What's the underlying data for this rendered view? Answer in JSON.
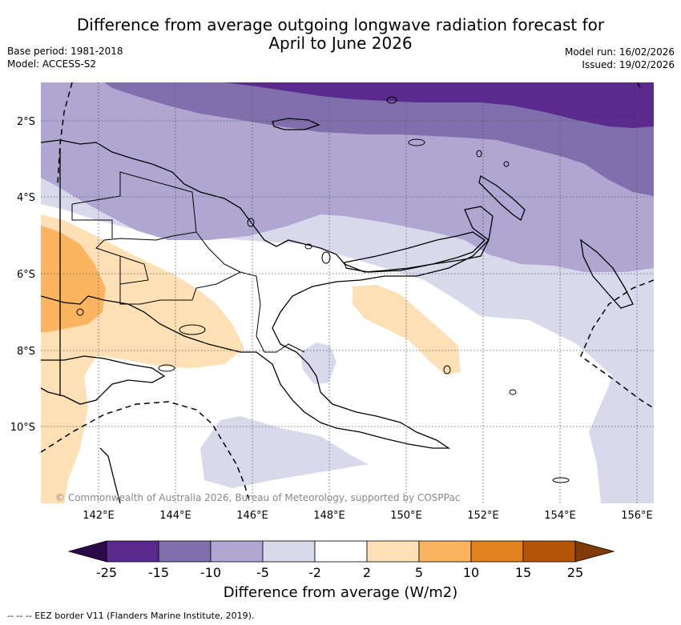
{
  "title": {
    "line1": "Difference from average outgoing longwave radiation forecast for",
    "line2": "April to June 2026"
  },
  "meta_left": {
    "base_period": "Base period: 1981-2018",
    "model": "Model: ACCESS-S2"
  },
  "meta_right": {
    "model_run": "Model run: 16/02/2026",
    "issued": "Issued: 19/02/2026"
  },
  "map": {
    "lat_labels": [
      "2°S",
      "4°S",
      "6°S",
      "8°S",
      "10°S"
    ],
    "lon_labels": [
      "142°E",
      "144°E",
      "146°E",
      "148°E",
      "150°E",
      "152°E",
      "154°E",
      "156°E"
    ],
    "credit": "© Commonwealth of Australia 2026, Bureau of Meteorology, supported by COSPPac",
    "region": "Papua New Guinea"
  },
  "colorbar": {
    "ticks": [
      "-25",
      "-15",
      "-10",
      "-5",
      "-2",
      "2",
      "5",
      "10",
      "15",
      "25"
    ],
    "colors": [
      "#5b2a8e",
      "#7f6fac",
      "#afa7d2",
      "#d9d9ec",
      "#ffffff",
      "#fde0b5",
      "#fbb560",
      "#e2821e",
      "#b35406"
    ],
    "under_color": "#2d0a4a",
    "over_color": "#7f3b08",
    "label": "Difference from average (W/m2)"
  },
  "footnote": "--  --  -- EEZ border V11 (Flanders Marine Institute, 2019)."
}
